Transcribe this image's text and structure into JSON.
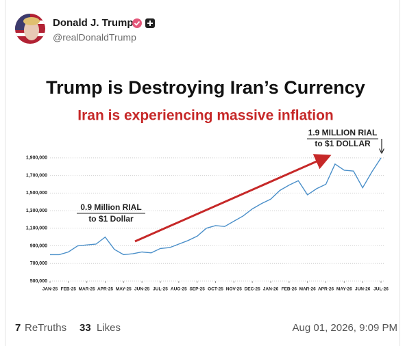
{
  "post": {
    "author": {
      "name": "Donald J. Trump",
      "handle": "@realDonaldTrump"
    },
    "stats": {
      "retruths": "7",
      "retruths_label": "ReTruths",
      "likes": "33",
      "likes_label": "Likes"
    },
    "timestamp": "Aug 01, 2026, 9:09 PM"
  },
  "chart_data": {
    "type": "line",
    "title": "Trump is Destroying Iran’s Currency",
    "subtitle": "Iran is experiencing massive inflation",
    "annotations": [
      "0.9 Million RIAL",
      "to $1 Dollar",
      "1.9 MILLION RIAL",
      "to $1 DOLLAR"
    ],
    "color": "#4a8fc9",
    "grid": true,
    "x": [
      0,
      0.5,
      1,
      1.5,
      2,
      2.5,
      3,
      3.5,
      4,
      4.5,
      5,
      5.5,
      6,
      6.5,
      7,
      7.5,
      8,
      8.5,
      9,
      9.5,
      10,
      10.5,
      11,
      11.5,
      12,
      12.5,
      13,
      13.5,
      14,
      14.5,
      15,
      15.5,
      16,
      16.5,
      17,
      17.5,
      18
    ],
    "values": [
      800000,
      800000,
      830000,
      900000,
      910000,
      920000,
      1000000,
      860000,
      800000,
      810000,
      830000,
      820000,
      870000,
      880000,
      920000,
      960000,
      1010000,
      1100000,
      1130000,
      1120000,
      1180000,
      1240000,
      1320000,
      1380000,
      1430000,
      1530000,
      1590000,
      1640000,
      1480000,
      1550000,
      1600000,
      1830000,
      1760000,
      1750000,
      1560000,
      1740000,
      1900000
    ],
    "xlim": [
      0,
      18
    ],
    "xticks": [
      {
        "value": 0,
        "label": "JAN-25"
      },
      {
        "value": 1,
        "label": "FEB-25"
      },
      {
        "value": 2,
        "label": "MAR-25"
      },
      {
        "value": 3,
        "label": "APR-25"
      },
      {
        "value": 4,
        "label": "MAY-25"
      },
      {
        "value": 5,
        "label": "JUN-25"
      },
      {
        "value": 6,
        "label": "JUL-25"
      },
      {
        "value": 7,
        "label": "AUG-25"
      },
      {
        "value": 8,
        "label": "SEP-25"
      },
      {
        "value": 9,
        "label": "OCT-25"
      },
      {
        "value": 10,
        "label": "NOV-25"
      },
      {
        "value": 11,
        "label": "DEC-25"
      },
      {
        "value": 12,
        "label": "JAN-26"
      },
      {
        "value": 13,
        "label": "FEB-26"
      },
      {
        "value": 14,
        "label": "MAR-26"
      },
      {
        "value": 15,
        "label": "APR-26"
      },
      {
        "value": 16,
        "label": "MAY-26"
      },
      {
        "value": 17,
        "label": "JUN-26"
      },
      {
        "value": 18,
        "label": "JUL-26"
      }
    ],
    "ylim": [
      500000,
      2000000
    ],
    "yticks": [
      {
        "value": 500000,
        "label": "500,000"
      },
      {
        "value": 700000,
        "label": "700,000"
      },
      {
        "value": 900000,
        "label": "900,000"
      },
      {
        "value": 1100000,
        "label": "1,100,000"
      },
      {
        "value": 1300000,
        "label": "1,300,000"
      },
      {
        "value": 1500000,
        "label": "1,500,000"
      },
      {
        "value": 1700000,
        "label": "1,700,000"
      },
      {
        "value": 1900000,
        "label": "1,900,000"
      }
    ]
  }
}
